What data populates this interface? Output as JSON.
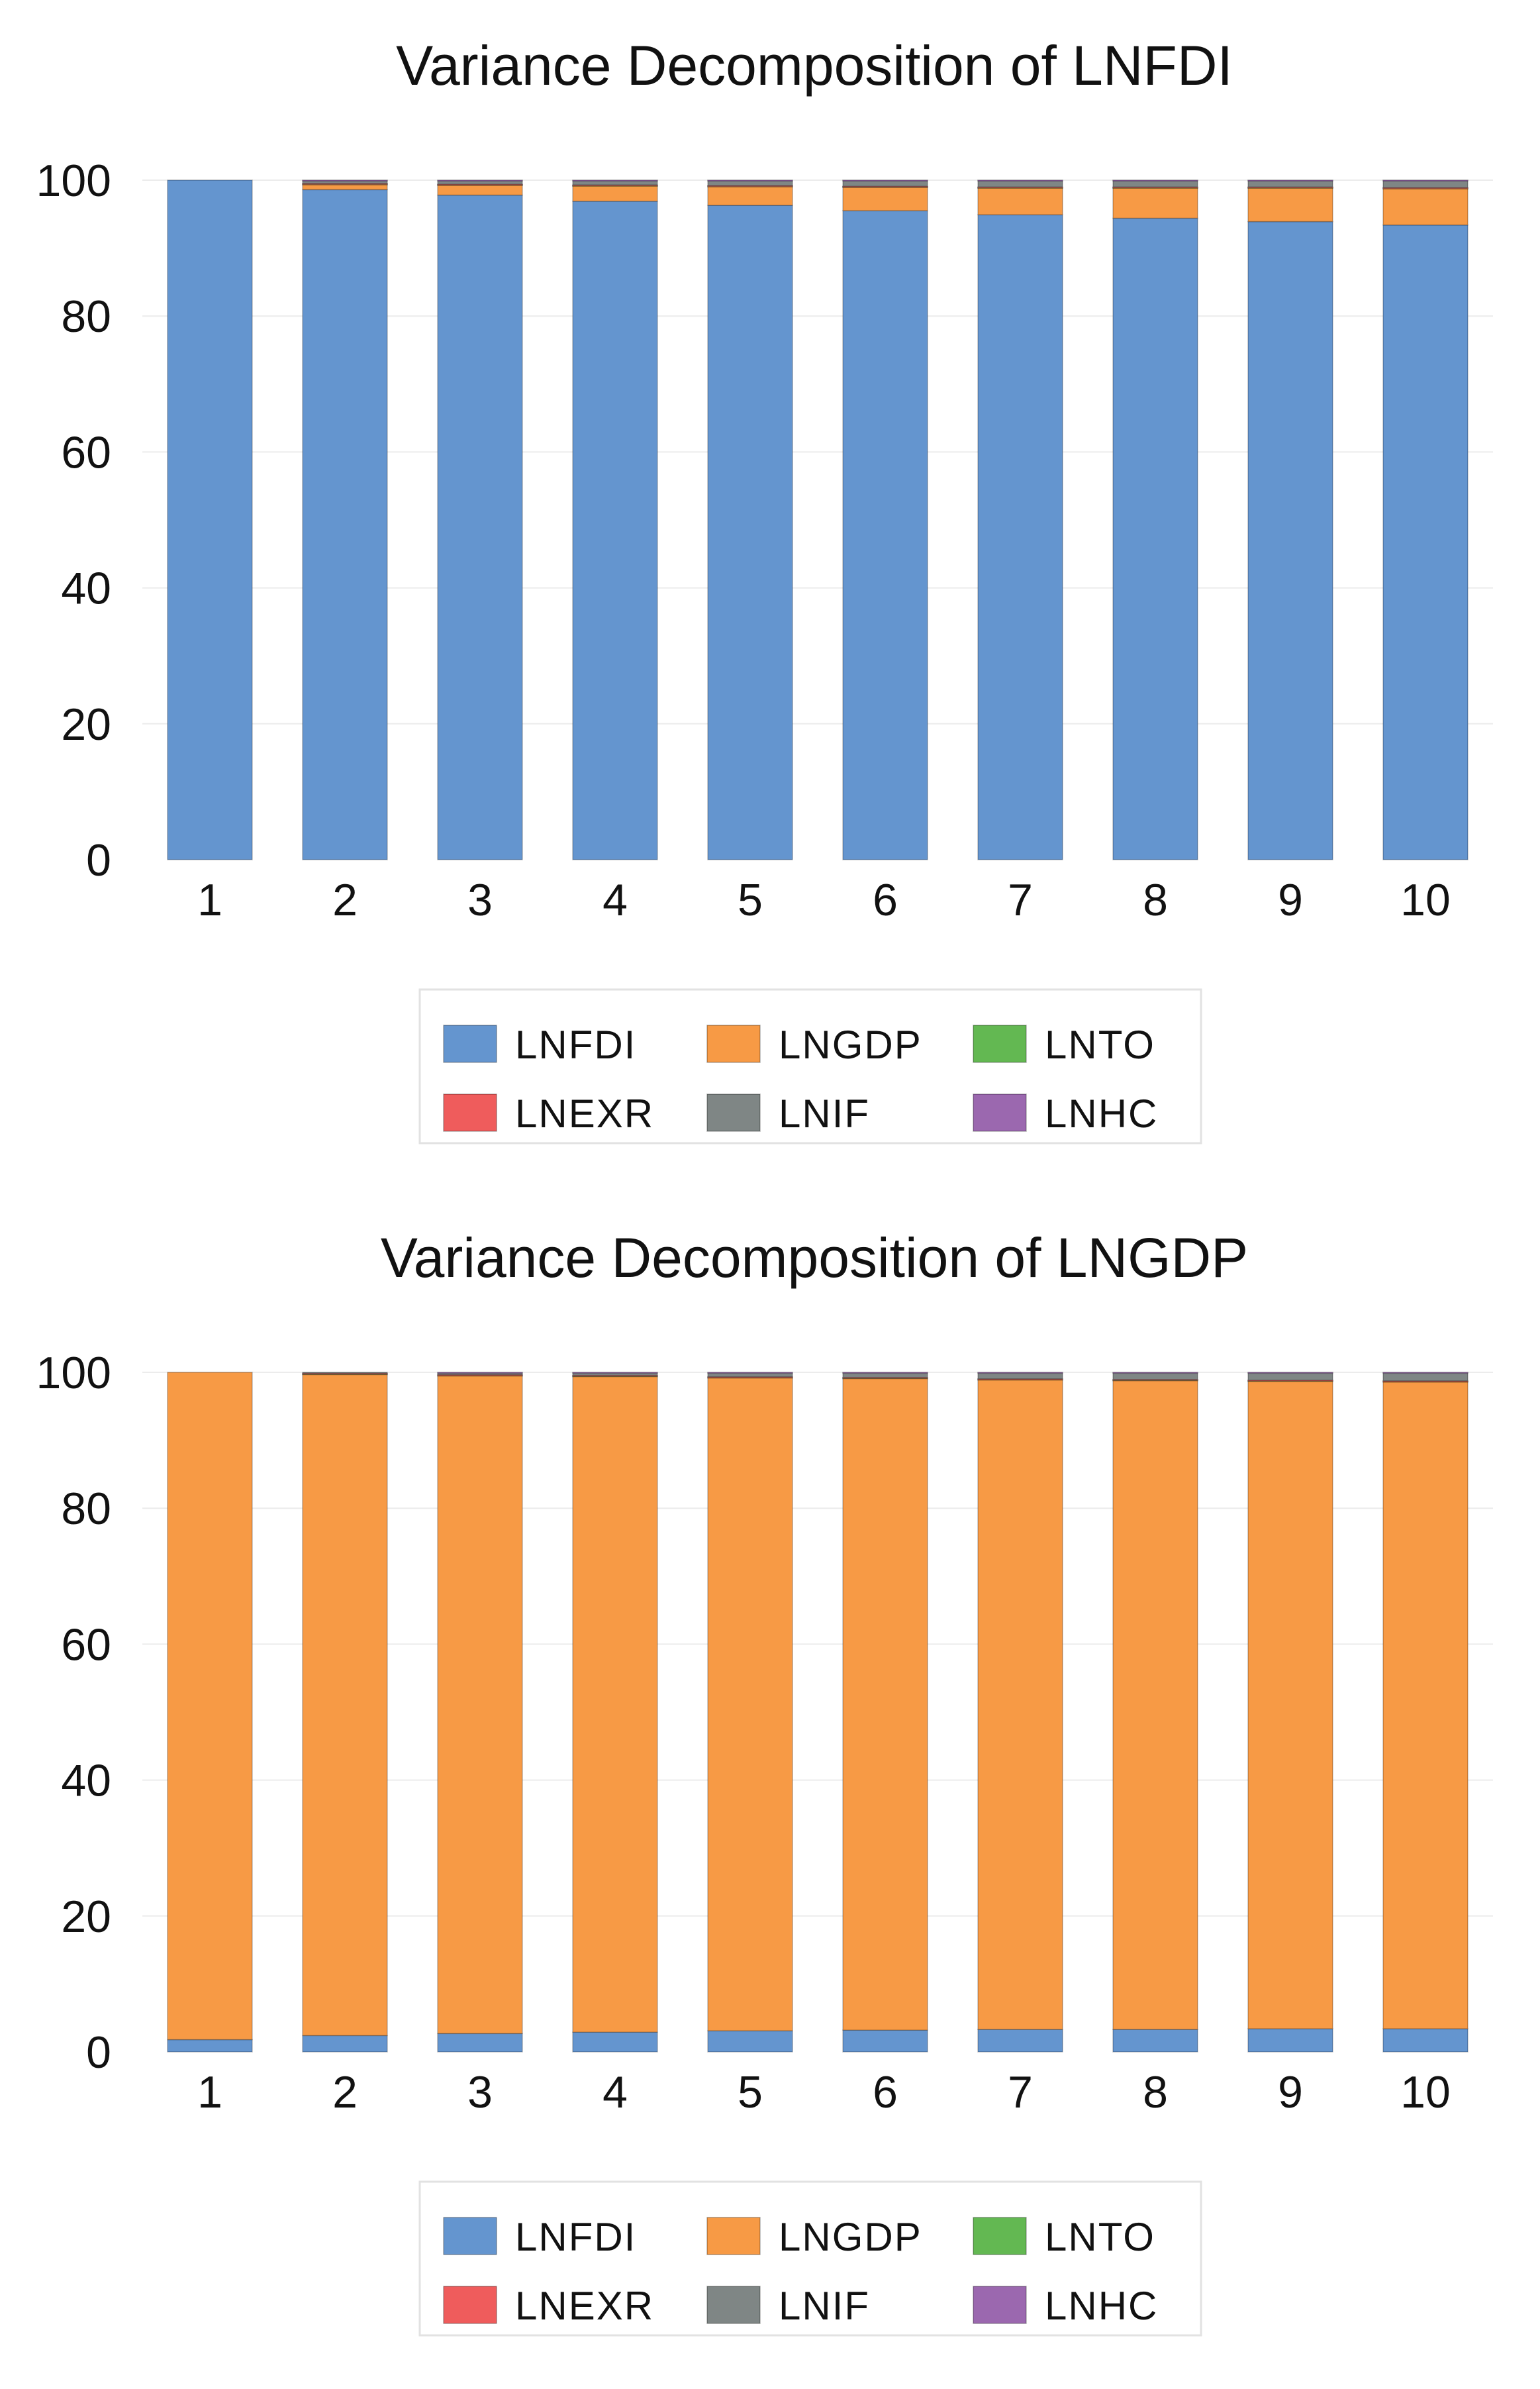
{
  "colors": {
    "LNFDI": "#6495cf",
    "LNGDP": "#f79a45",
    "LNTO": "#63b852",
    "LNEXR": "#ef5c5c",
    "LNIF": "#7f8685",
    "LNHC": "#9b68af"
  },
  "legend_order": [
    "LNFDI",
    "LNGDP",
    "LNTO",
    "LNEXR",
    "LNIF",
    "LNHC"
  ],
  "chart_data": [
    {
      "type": "bar",
      "stacked": true,
      "title": "Variance Decomposition of LNFDI",
      "xlabel": "",
      "ylabel": "",
      "ylim": [
        0,
        100
      ],
      "yticks": [
        0,
        20,
        40,
        60,
        80,
        100
      ],
      "categories": [
        "1",
        "2",
        "3",
        "4",
        "5",
        "6",
        "7",
        "8",
        "9",
        "10"
      ],
      "series": [
        {
          "name": "LNFDI",
          "values": [
            100.0,
            98.6,
            97.8,
            96.9,
            96.3,
            95.5,
            94.9,
            94.4,
            93.9,
            93.4
          ]
        },
        {
          "name": "LNGDP",
          "values": [
            0.0,
            0.8,
            1.5,
            2.3,
            2.8,
            3.5,
            4.0,
            4.5,
            5.0,
            5.4
          ]
        },
        {
          "name": "LNTO",
          "values": [
            0.0,
            0.05,
            0.05,
            0.05,
            0.05,
            0.05,
            0.05,
            0.05,
            0.05,
            0.05
          ]
        },
        {
          "name": "LNEXR",
          "values": [
            0.0,
            0.05,
            0.05,
            0.05,
            0.05,
            0.05,
            0.05,
            0.05,
            0.05,
            0.05
          ]
        },
        {
          "name": "LNIF",
          "values": [
            0.0,
            0.45,
            0.55,
            0.65,
            0.75,
            0.85,
            0.95,
            0.95,
            0.95,
            1.05
          ]
        },
        {
          "name": "LNHC",
          "values": [
            0.0,
            0.05,
            0.05,
            0.05,
            0.05,
            0.05,
            0.05,
            0.05,
            0.05,
            0.05
          ]
        }
      ],
      "legend": {
        "entries": [
          "LNFDI",
          "LNGDP",
          "LNTO",
          "LNEXR",
          "LNIF",
          "LNHC"
        ],
        "placement": "bottom-center"
      }
    },
    {
      "type": "bar",
      "stacked": true,
      "title": "Variance Decomposition of LNGDP",
      "xlabel": "",
      "ylabel": "",
      "ylim": [
        0,
        100
      ],
      "yticks": [
        0,
        20,
        40,
        60,
        80,
        100
      ],
      "categories": [
        "1",
        "2",
        "3",
        "4",
        "5",
        "6",
        "7",
        "8",
        "9",
        "10"
      ],
      "series": [
        {
          "name": "LNFDI",
          "values": [
            1.8,
            2.4,
            2.7,
            2.9,
            3.1,
            3.2,
            3.3,
            3.3,
            3.4,
            3.4
          ]
        },
        {
          "name": "LNGDP",
          "values": [
            98.2,
            97.3,
            96.8,
            96.5,
            96.1,
            95.9,
            95.6,
            95.5,
            95.3,
            95.2
          ]
        },
        {
          "name": "LNTO",
          "values": [
            0.0,
            0.1,
            0.1,
            0.1,
            0.1,
            0.1,
            0.1,
            0.1,
            0.1,
            0.1
          ]
        },
        {
          "name": "LNEXR",
          "values": [
            0.0,
            0.05,
            0.05,
            0.05,
            0.05,
            0.05,
            0.05,
            0.05,
            0.05,
            0.05
          ]
        },
        {
          "name": "LNIF",
          "values": [
            0.0,
            0.15,
            0.3,
            0.4,
            0.6,
            0.7,
            0.9,
            1.0,
            1.1,
            1.2
          ]
        },
        {
          "name": "LNHC",
          "values": [
            0.0,
            0.0,
            0.05,
            0.05,
            0.05,
            0.05,
            0.05,
            0.05,
            0.05,
            0.05
          ]
        }
      ],
      "legend": {
        "entries": [
          "LNFDI",
          "LNGDP",
          "LNTO",
          "LNEXR",
          "LNIF",
          "LNHC"
        ],
        "placement": "bottom-center"
      }
    }
  ]
}
